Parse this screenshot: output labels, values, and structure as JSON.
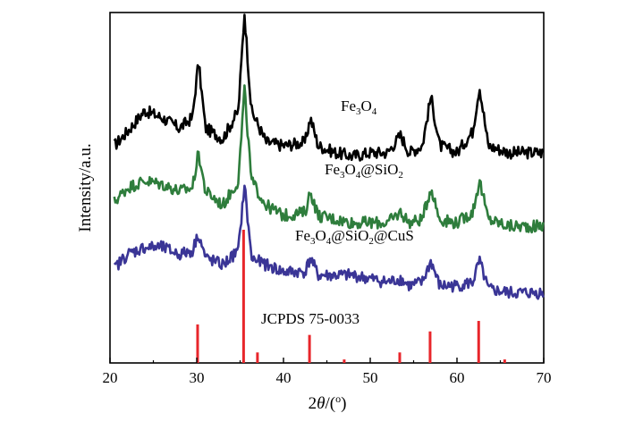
{
  "chart_data": {
    "type": "line",
    "xlabel_parts": [
      "2",
      "θ",
      "/(",
      "o",
      ")"
    ],
    "ylabel": "Intensity/a.u.",
    "xlim": [
      20,
      70
    ],
    "x_ticks": [
      "20",
      "30",
      "40",
      "50",
      "60",
      "70"
    ],
    "y_ticks": [],
    "grid": false,
    "colors": {
      "Fe3O4": "#000000",
      "Fe3O4@SiO2": "#2e7d3c",
      "Fe3O4@SiO2@CuS": "#3a3596",
      "reference": "#e8262b"
    },
    "series": [
      {
        "label_parts": [
          [
            "Fe",
            ""
          ],
          [
            "3",
            "sub"
          ],
          [
            "O",
            ""
          ],
          [
            "4",
            "sub"
          ]
        ],
        "color": "#000000",
        "x": [
          20.5,
          22,
          24,
          26,
          28,
          29.5,
          30.2,
          31,
          33,
          34.8,
          35.5,
          36.3,
          38,
          40,
          42.5,
          43.1,
          44,
          46,
          48,
          50,
          52,
          53.5,
          54.5,
          56,
          57.0,
          58,
          60,
          61.8,
          62.6,
          63.6,
          66,
          68,
          70
        ],
        "y": [
          0.62,
          0.66,
          0.72,
          0.7,
          0.67,
          0.7,
          0.86,
          0.67,
          0.64,
          0.72,
          1.0,
          0.72,
          0.63,
          0.62,
          0.63,
          0.7,
          0.62,
          0.6,
          0.59,
          0.6,
          0.6,
          0.65,
          0.6,
          0.62,
          0.76,
          0.62,
          0.6,
          0.66,
          0.79,
          0.62,
          0.6,
          0.6,
          0.6
        ]
      },
      {
        "label_parts": [
          [
            "Fe",
            ""
          ],
          [
            "3",
            "sub"
          ],
          [
            "O",
            ""
          ],
          [
            "4",
            "sub"
          ],
          [
            "@SiO",
            ""
          ],
          [
            "2",
            "sub"
          ]
        ],
        "color": "#2e7d3c",
        "x": [
          20.5,
          22,
          24,
          26,
          28,
          29.5,
          30.2,
          31,
          33,
          34.8,
          35.5,
          36.3,
          38,
          40,
          42.5,
          43.1,
          44,
          46,
          48,
          50,
          52,
          53.5,
          54.5,
          56,
          57.0,
          58,
          60,
          61.8,
          62.6,
          63.6,
          66,
          68,
          70
        ],
        "y": [
          0.46,
          0.5,
          0.52,
          0.51,
          0.49,
          0.5,
          0.6,
          0.49,
          0.45,
          0.52,
          0.78,
          0.52,
          0.45,
          0.42,
          0.43,
          0.49,
          0.42,
          0.41,
          0.4,
          0.4,
          0.4,
          0.43,
          0.4,
          0.41,
          0.5,
          0.41,
          0.4,
          0.43,
          0.52,
          0.41,
          0.39,
          0.39,
          0.39
        ]
      },
      {
        "label_parts": [
          [
            "Fe",
            ""
          ],
          [
            "3",
            "sub"
          ],
          [
            "O",
            ""
          ],
          [
            "4",
            "sub"
          ],
          [
            "@SiO",
            ""
          ],
          [
            "2",
            "sub"
          ],
          [
            "@CuS",
            ""
          ]
        ],
        "color": "#3a3596",
        "x": [
          20.5,
          22,
          24,
          26,
          28,
          29.5,
          30.2,
          31,
          33,
          34.8,
          35.5,
          36.3,
          38,
          40,
          42.5,
          43.1,
          44,
          46,
          48,
          50,
          52,
          53.5,
          54.5,
          56,
          57.0,
          58,
          60,
          61.8,
          62.6,
          63.6,
          66,
          68,
          70
        ],
        "y": [
          0.27,
          0.31,
          0.33,
          0.33,
          0.31,
          0.32,
          0.37,
          0.3,
          0.28,
          0.32,
          0.51,
          0.3,
          0.28,
          0.26,
          0.26,
          0.3,
          0.25,
          0.25,
          0.25,
          0.24,
          0.23,
          0.24,
          0.22,
          0.23,
          0.29,
          0.22,
          0.22,
          0.23,
          0.29,
          0.21,
          0.2,
          0.2,
          0.2
        ]
      }
    ],
    "reference": {
      "label": "JCPDS 75-0033",
      "x": [
        30.1,
        35.4,
        37.0,
        43.0,
        47.0,
        53.4,
        56.9,
        62.5,
        65.5
      ],
      "y": [
        0.11,
        0.38,
        0.03,
        0.08,
        0.01,
        0.03,
        0.09,
        0.12,
        0.01
      ]
    }
  }
}
